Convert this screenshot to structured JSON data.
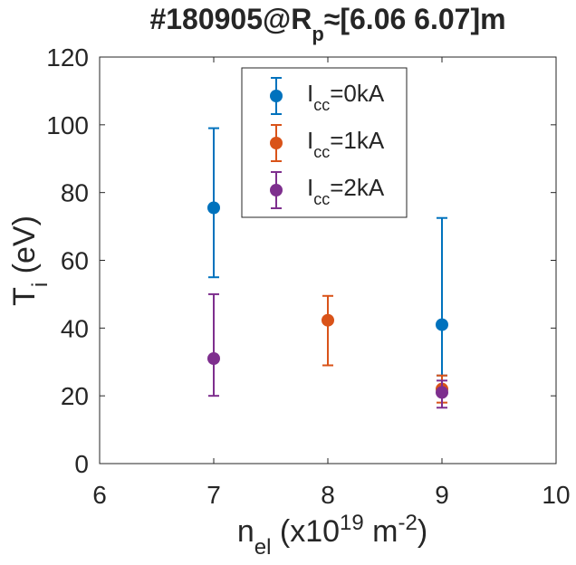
{
  "chart_data": {
    "type": "errorbar-scatter",
    "title": [
      {
        "text": "#180905@R"
      },
      {
        "text": "p",
        "shift": "sub"
      },
      {
        "text": "≈[6.06 6.07]m"
      }
    ],
    "xlabel": [
      {
        "text": "n"
      },
      {
        "text": "el",
        "shift": "sub"
      },
      {
        "text": " (x10"
      },
      {
        "text": "19",
        "shift": "super"
      },
      {
        "text": " m"
      },
      {
        "text": "-2",
        "shift": "super"
      },
      {
        "text": ")"
      }
    ],
    "ylabel": [
      {
        "text": "T"
      },
      {
        "text": "i",
        "shift": "sub"
      },
      {
        "text": " (eV)"
      }
    ],
    "xlim": [
      6,
      10
    ],
    "xticks": [
      6,
      7,
      8,
      9,
      10
    ],
    "ylim": [
      0,
      120
    ],
    "yticks": [
      0,
      20,
      40,
      60,
      80,
      100,
      120
    ],
    "legend": "top",
    "series": [
      {
        "name": [
          {
            "text": "I"
          },
          {
            "text": "cc",
            "shift": "sub"
          },
          {
            "text": "=0kA"
          }
        ],
        "color": "#0072bd",
        "x": [
          7,
          9
        ],
        "values": [
          75.5,
          41
        ],
        "lower": [
          55,
          26
        ],
        "upper": [
          99,
          72.5
        ]
      },
      {
        "name": [
          {
            "text": "I"
          },
          {
            "text": "cc",
            "shift": "sub"
          },
          {
            "text": "=1kA"
          }
        ],
        "color": "#d95319",
        "x": [
          8,
          9
        ],
        "values": [
          42.3,
          22
        ],
        "lower": [
          29,
          18
        ],
        "upper": [
          49.5,
          26
        ]
      },
      {
        "name": [
          {
            "text": "I"
          },
          {
            "text": "cc",
            "shift": "sub"
          },
          {
            "text": "=2kA"
          }
        ],
        "color": "#7e2f8e",
        "x": [
          7,
          9
        ],
        "values": [
          31,
          21
        ],
        "lower": [
          20,
          16.5
        ],
        "upper": [
          50,
          24.5
        ]
      }
    ]
  }
}
